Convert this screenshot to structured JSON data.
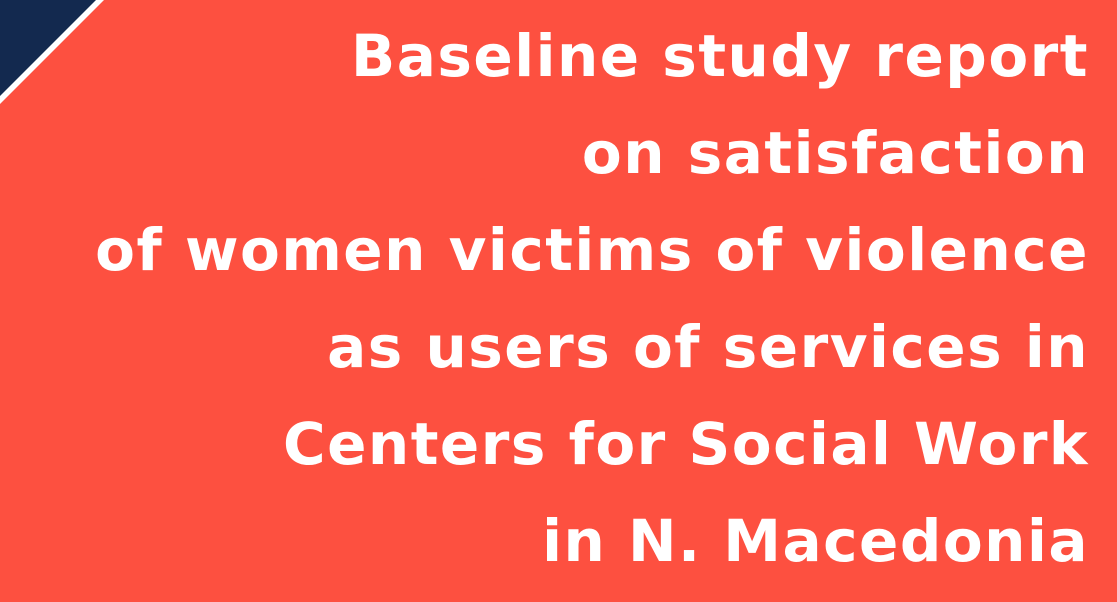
{
  "title_lines": [
    "Baseline study report",
    "on satisfaction",
    "of women victims of violence",
    "as users of services in",
    "Centers for Social Work",
    "in N. Macedonia"
  ]
}
